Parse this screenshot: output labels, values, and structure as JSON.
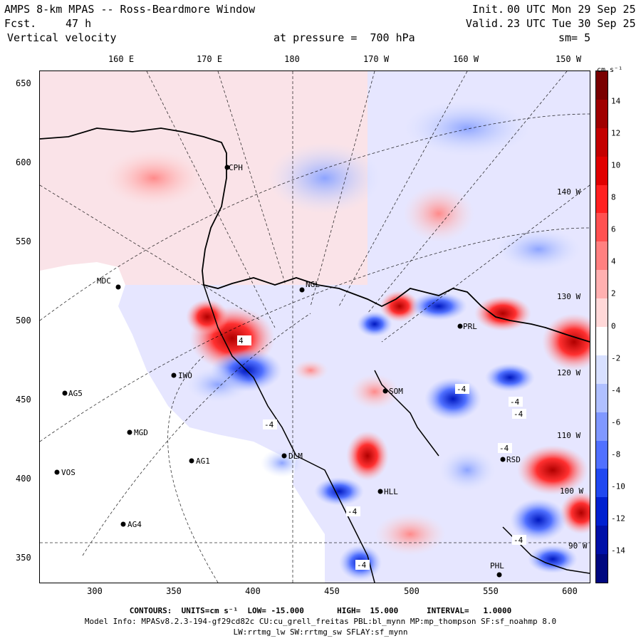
{
  "header": {
    "title": "AMPS 8-km MPAS -- Ross-Beardmore Window",
    "fcst_label": "Fcst.",
    "fcst_value": "47 h",
    "variable": "Vertical velocity",
    "init_label": "Init.",
    "init_time": "00 UTC Mon 29 Sep 25",
    "valid_label": "Valid.",
    "valid_time": "23 UTC Tue 30 Sep 25",
    "pressure_text": "at pressure =  700 hPa",
    "smoothing": "sm= 5"
  },
  "longitude_labels": [
    "160 E",
    "170 E",
    "180",
    "170 W",
    "160 W",
    "150 W"
  ],
  "inner_lon_labels": [
    "140 W",
    "130 W",
    "120 W",
    "110 W",
    "100 W",
    "90 W"
  ],
  "x_axis_ticks": [
    "300",
    "350",
    "400",
    "450",
    "500",
    "550",
    "600"
  ],
  "y_axis_ticks": [
    "650",
    "600",
    "550",
    "500",
    "450",
    "400",
    "350"
  ],
  "colorbar": {
    "units": "cm s⁻¹",
    "tick_labels": [
      "14",
      "12",
      "10",
      "8",
      "6",
      "4",
      "2",
      "0",
      "-2",
      "-4",
      "-6",
      "-8",
      "-10",
      "-12",
      "-14"
    ],
    "colors": [
      "#7a0000",
      "#a00000",
      "#c40000",
      "#e00000",
      "#ff2020",
      "#ff5050",
      "#ff8080",
      "#ffb0b0",
      "#ffd8d8",
      "#ffffff",
      "#d8e0ff",
      "#b0c0ff",
      "#8098ff",
      "#5070ff",
      "#2048f0",
      "#0020d0",
      "#0010a8",
      "#000880"
    ]
  },
  "stations": [
    {
      "name": "CPH"
    },
    {
      "name": "MDC"
    },
    {
      "name": "NGL"
    },
    {
      "name": "PRL"
    },
    {
      "name": "AG5"
    },
    {
      "name": "IWO"
    },
    {
      "name": "SOM"
    },
    {
      "name": "MGD"
    },
    {
      "name": "AG1"
    },
    {
      "name": "DLM"
    },
    {
      "name": "VOS"
    },
    {
      "name": "AG4"
    },
    {
      "name": "HLL"
    },
    {
      "name": "RSD"
    },
    {
      "name": "PHL"
    }
  ],
  "contour_labels": [
    "4",
    "-4",
    "-4",
    "-4",
    "-4",
    "-4",
    "-4",
    "-4",
    "-4"
  ],
  "footer": {
    "contours_line": "CONTOURS:  UNITS=cm s⁻¹  LOW= -15.000       HIGH=  15.000      INTERVAL=   1.0000",
    "model_info": "Model Info: MPASv8.2.3-194-gf29cd82c CU:cu_grell_freitas PBL:bl_mynn MP:mp_thompson SF:sf_noahmp 8.0",
    "physics_line": "LW:rrtmg_lw SW:rrtmg_sw SFLAY:sf_mynn"
  }
}
